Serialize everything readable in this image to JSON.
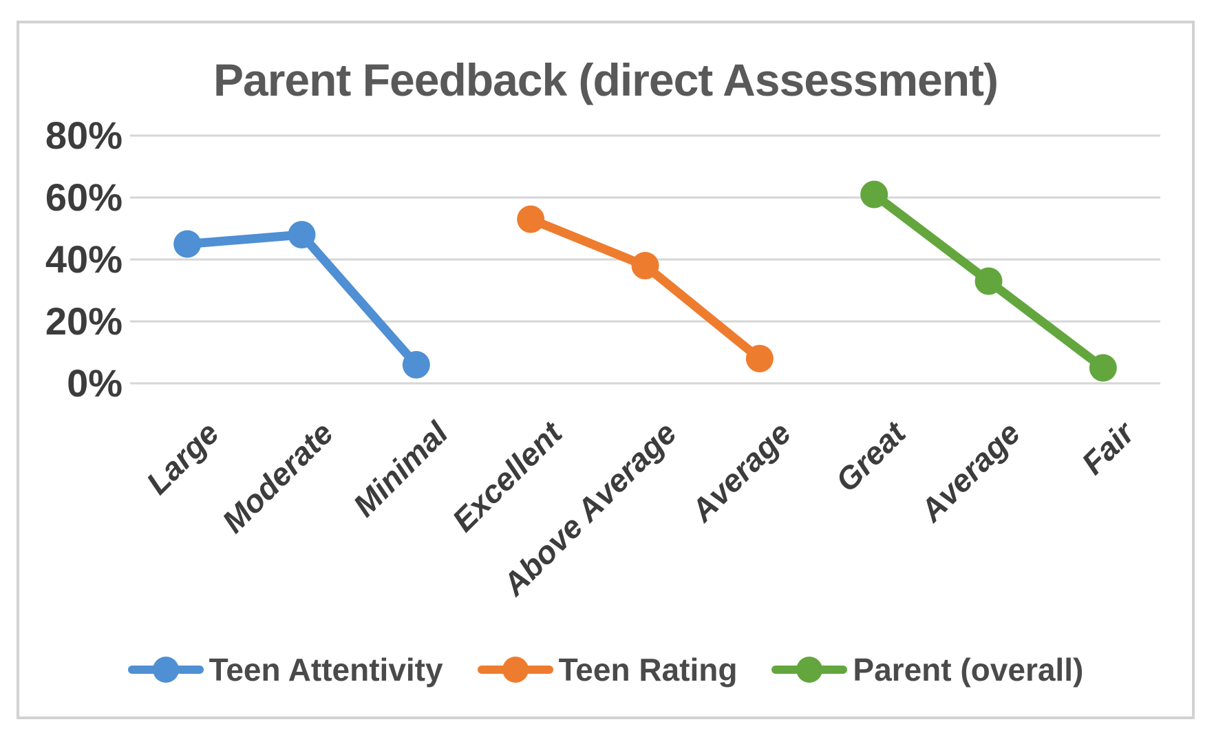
{
  "chart_data": {
    "type": "line",
    "title": "Parent Feedback (direct Assessment)",
    "categories": [
      "Large",
      "Moderate",
      "Minimal",
      "Excellent",
      "Above Average",
      "Average",
      "Great",
      "Average",
      "Fair"
    ],
    "series": [
      {
        "name": "Teen Attentivity",
        "color": "#4f8fd3",
        "points": [
          {
            "category_index": 0,
            "category": "Large",
            "value": 45
          },
          {
            "category_index": 1,
            "category": "Moderate",
            "value": 48
          },
          {
            "category_index": 2,
            "category": "Minimal",
            "value": 6
          }
        ]
      },
      {
        "name": "Teen Rating",
        "color": "#ee7c2f",
        "points": [
          {
            "category_index": 3,
            "category": "Excellent",
            "value": 53
          },
          {
            "category_index": 4,
            "category": "Above Average",
            "value": 38
          },
          {
            "category_index": 5,
            "category": "Average",
            "value": 8
          }
        ]
      },
      {
        "name": "Parent (overall)",
        "color": "#63a63e",
        "points": [
          {
            "category_index": 6,
            "category": "Great",
            "value": 61
          },
          {
            "category_index": 7,
            "category": "Average",
            "value": 33
          },
          {
            "category_index": 8,
            "category": "Fair",
            "value": 5
          }
        ]
      }
    ],
    "y_axis": {
      "min": 0,
      "max": 80,
      "ticks": [
        {
          "label": "80%",
          "value": 80
        },
        {
          "label": "60%",
          "value": 60
        },
        {
          "label": "40%",
          "value": 40
        },
        {
          "label": "20%",
          "value": 20
        },
        {
          "label": "0%",
          "value": 0
        }
      ]
    },
    "grid": true,
    "legend_position": "bottom",
    "colors": {
      "gridline": "#d6d6d6",
      "frame_border": "#d2d2d2",
      "title_text": "#595959",
      "axis_text": "#3c3c3c",
      "legend_text": "#4a4a4a",
      "background": "#ffffff"
    }
  }
}
